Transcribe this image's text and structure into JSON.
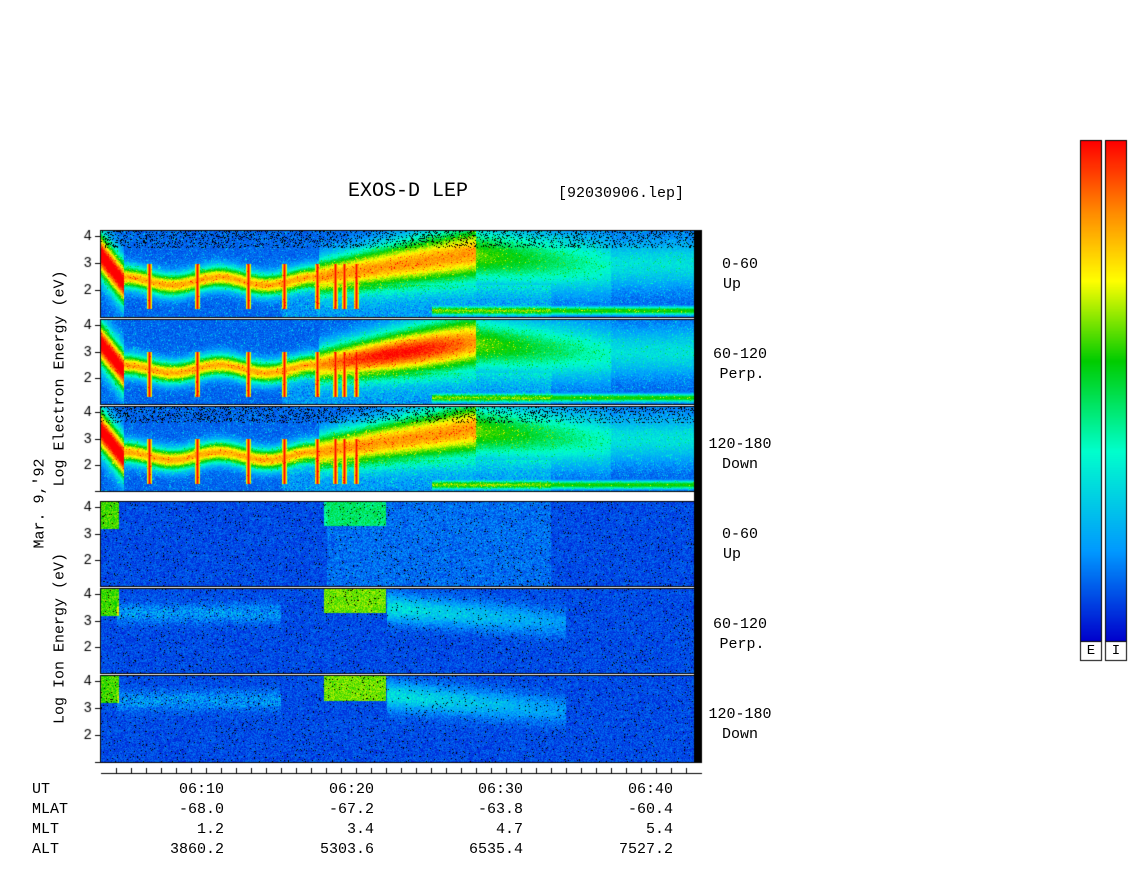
{
  "title": "EXOS-D LEP",
  "filename": "[92030906.lep]",
  "date_label": "Mar. 9,'92",
  "electron_label": "Log   Electron   Energy  (eV)",
  "ion_label": "Log   Ion   Energy  (eV)",
  "panels": [
    {
      "species": "electron",
      "pitch": "0-60",
      "dir": "Up"
    },
    {
      "species": "electron",
      "pitch": "60-120",
      "dir": "Perp."
    },
    {
      "species": "electron",
      "pitch": "120-180",
      "dir": "Down"
    },
    {
      "species": "ion",
      "pitch": "0-60",
      "dir": "Up"
    },
    {
      "species": "ion",
      "pitch": "60-120",
      "dir": "Perp."
    },
    {
      "species": "ion",
      "pitch": "120-180",
      "dir": "Down"
    }
  ],
  "colorbar_labels": [
    "E",
    "I"
  ],
  "colors": [
    "#f8f8f8",
    "#ffb8b8",
    "#ff0000",
    "#ff8800",
    "#ffff00",
    "#00cc00",
    "#00ffcc",
    "#0099ff",
    "#0000cc",
    "#00008a"
  ],
  "footer": {
    "row_labels": [
      "UT",
      "MLAT",
      "MLT",
      "ALT"
    ],
    "columns": [
      {
        "ut": "06:10",
        "mlat": "-68.0",
        "mlt": "1.2",
        "alt": "3860.2"
      },
      {
        "ut": "06:20",
        "mlat": "-67.2",
        "mlt": "3.4",
        "alt": "5303.6"
      },
      {
        "ut": "06:30",
        "mlat": "-63.8",
        "mlt": "4.7",
        "alt": "6535.4"
      },
      {
        "ut": "06:40",
        "mlat": "-60.4",
        "mlt": "5.4",
        "alt": "7527.2"
      }
    ]
  },
  "chart_data": {
    "type": "heatmap",
    "title": "EXOS-D LEP",
    "xlabel": "UT",
    "ylabel": "Log Energy (eV)",
    "yticks": [
      2,
      3,
      4
    ],
    "x_tick_labels": [
      "06:10",
      "06:20",
      "06:30",
      "06:40"
    ]
  }
}
